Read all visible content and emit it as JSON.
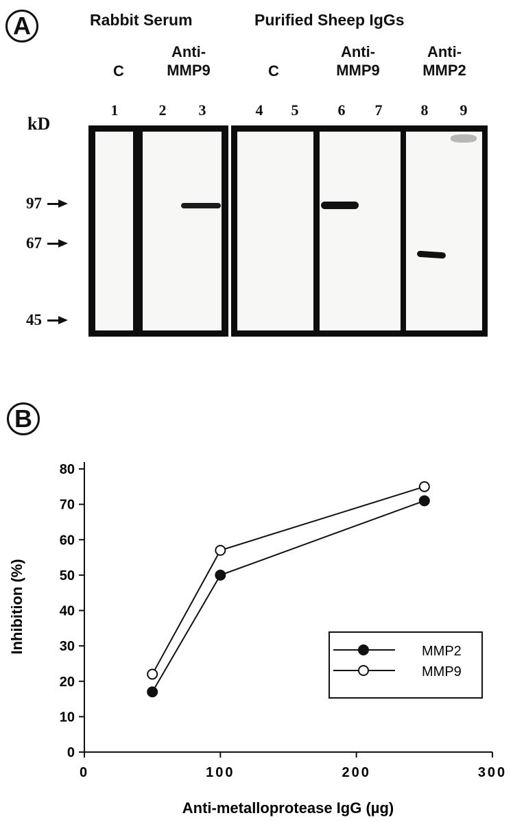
{
  "panel_a": {
    "letter": "A",
    "header_left": "Rabbit Serum",
    "header_right": "Purified Sheep IgGs",
    "groups": {
      "rabbit_c": "C",
      "rabbit_anti": [
        "Anti-",
        "MMP9"
      ],
      "sheep_c": "C",
      "sheep_anti_mmp9": [
        "Anti-",
        "MMP9"
      ],
      "sheep_anti_mmp2": [
        "Anti-",
        "MMP2"
      ]
    },
    "lanes": [
      "1",
      "2",
      "3",
      "4",
      "5",
      "6",
      "7",
      "8",
      "9"
    ],
    "kd_label": "kD",
    "markers": [
      "97",
      "67",
      "45"
    ]
  },
  "panel_b": {
    "letter": "B"
  },
  "chart_data": {
    "type": "line",
    "xlabel": "Anti-metalloprotease IgG (µg)",
    "ylabel": "Inhibition (%)",
    "xlim": [
      0,
      300
    ],
    "ylim": [
      0,
      80
    ],
    "xticks": [
      0,
      100,
      200,
      300
    ],
    "yticks": [
      0,
      10,
      20,
      30,
      40,
      50,
      60,
      70,
      80
    ],
    "grid": false,
    "legend_position": "right",
    "series": [
      {
        "name": "MMP2",
        "marker": "filled-circle",
        "x": [
          50,
          100,
          250
        ],
        "y": [
          17,
          50,
          71
        ]
      },
      {
        "name": "MMP9",
        "marker": "open-circle",
        "x": [
          50,
          100,
          250
        ],
        "y": [
          22,
          57,
          75
        ]
      }
    ]
  }
}
